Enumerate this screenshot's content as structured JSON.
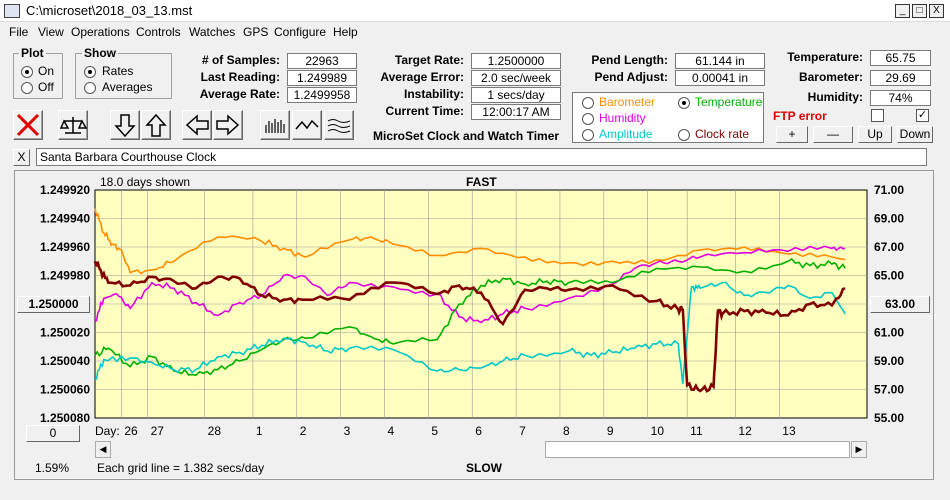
{
  "window": {
    "title": "C:\\microset\\2018_03_13.mst",
    "min": "_",
    "max": "□",
    "close": "X"
  },
  "menu": [
    "File",
    "View",
    "Operations",
    "Controls",
    "Watches",
    "GPS",
    "Configure",
    "Help"
  ],
  "plot_group": {
    "title": "Plot",
    "on": "On",
    "off": "Off",
    "selected": "On"
  },
  "show_group": {
    "title": "Show",
    "rates": "Rates",
    "averages": "Averages",
    "selected": "Rates"
  },
  "stats": {
    "samples_label": "# of Samples:",
    "samples": "22963",
    "last_label": "Last Reading:",
    "last": "1.249989",
    "avg_label": "Average Rate:",
    "avg": "1.2499958",
    "target_label": "Target Rate:",
    "target": "1.2500000",
    "avgerr_label": "Average Error:",
    "avgerr": "2.0 sec/week",
    "instab_label": "Instability:",
    "instab": "1 secs/day",
    "time_label": "Current Time:",
    "time": "12:00:17 AM",
    "app_title": "MicroSet Clock and Watch Timer",
    "pend_len_label": "Pend Length:",
    "pend_len": "61.144 in",
    "pend_adj_label": "Pend Adjust:",
    "pend_adj": "0.00041 in",
    "temp_label": "Temperature:",
    "temp": "65.75",
    "baro_label": "Barometer:",
    "baro": "29.69",
    "hum_label": "Humidity:",
    "hum": "74%",
    "ftp_label": "FTP error"
  },
  "aux": {
    "barometer": "Barometer",
    "temperature": "Temperature",
    "humidity": "Humidity",
    "amplitude": "Amplitude",
    "clockrate": "Clock rate",
    "selected": "Temperature",
    "colors": {
      "barometer": "#ff8c00",
      "temperature": "#00b000",
      "humidity": "#e000e0",
      "amplitude": "#00c8c8",
      "clockrate": "#800000"
    }
  },
  "buttons": {
    "plus": "+",
    "minus": "—",
    "up": "Up",
    "down": "Down",
    "close_x": "X",
    "zero": "0",
    "left_val": "1.250000",
    "right_val": "63.00"
  },
  "clock_name": "Santa Barbara Courthouse Clock",
  "chart_data": {
    "type": "line",
    "days_shown": "18.0 days shown",
    "top_label": "FAST",
    "bottom_label": "SLOW",
    "grid_note": "Each grid line = 1.382 secs/day",
    "percent": "1.59%",
    "day_label": "Day:",
    "left_ticks": [
      "1.249920",
      "1.249940",
      "1.249960",
      "1.249980",
      "1.250000",
      "1.250020",
      "1.250040",
      "1.250060",
      "1.250080"
    ],
    "right_ticks": [
      "71.00",
      "69.00",
      "67.00",
      "65.00",
      "63.00",
      "61.00",
      "59.00",
      "57.00",
      "55.00"
    ],
    "day_ticks": [
      "26",
      "27",
      "28",
      "1",
      "2",
      "3",
      "4",
      "5",
      "6",
      "7",
      "8",
      "9",
      "10",
      "11",
      "12",
      "13"
    ],
    "day_positions": [
      -0.2,
      0.4,
      1.7,
      2.8,
      3.8,
      4.8,
      5.8,
      6.8,
      7.8,
      8.8,
      9.8,
      10.8,
      11.8,
      12.7,
      13.8,
      14.8
    ],
    "x_range": [
      -0.8,
      16.8
    ],
    "series": [
      {
        "name": "Barometer",
        "color": "#ff8c00",
        "x": [
          -0.8,
          -0.6,
          -0.4,
          -0.2,
          0.0,
          0.5,
          1.0,
          2.0,
          3.0,
          3.5,
          4.0,
          5.0,
          5.5,
          6.0,
          7.0,
          8.0,
          9.0,
          10.0,
          11.0,
          12.0,
          13.0,
          14.0,
          15.0,
          16.0,
          16.3
        ],
        "y": [
          69.7,
          68.0,
          67.2,
          66.8,
          65.2,
          65.4,
          66.0,
          67.7,
          67.4,
          66.9,
          66.3,
          67.5,
          67.7,
          67.2,
          66.4,
          66.9,
          66.3,
          65.9,
          66.0,
          66.1,
          66.8,
          67.0,
          66.5,
          66.3,
          66.1
        ]
      },
      {
        "name": "Humidity",
        "color": "#e000e0",
        "x": [
          -0.8,
          -0.6,
          -0.3,
          0.0,
          0.5,
          1.0,
          1.5,
          2.0,
          2.5,
          3.0,
          3.5,
          4.0,
          4.5,
          5.0,
          6.0,
          7.0,
          7.5,
          8.0,
          8.5,
          9.0,
          10.0,
          11.0,
          11.5,
          12.0,
          12.5,
          13.0,
          14.0,
          15.0,
          16.0,
          16.3
        ],
        "y": [
          61.8,
          63.4,
          63.7,
          62.7,
          64.5,
          64.1,
          63.1,
          62.2,
          63.1,
          63.6,
          65.0,
          64.9,
          63.6,
          64.5,
          64.2,
          63.7,
          62.1,
          61.7,
          62.3,
          62.7,
          63.4,
          64.4,
          65.5,
          65.9,
          66.0,
          66.3,
          66.6,
          66.7,
          66.9,
          66.9
        ]
      },
      {
        "name": "Temperature",
        "color": "#00b000",
        "x": [
          -0.8,
          -0.5,
          0.0,
          0.5,
          1.0,
          1.5,
          2.0,
          2.5,
          3.0,
          3.5,
          4.0,
          5.0,
          5.5,
          6.0,
          7.0,
          7.5,
          8.0,
          8.5,
          9.0,
          9.5,
          10.0,
          11.0,
          12.0,
          13.0,
          14.0,
          15.0,
          15.5,
          16.0,
          16.3
        ],
        "y": [
          59.4,
          59.9,
          58.6,
          59.3,
          58.3,
          58.0,
          58.4,
          59.0,
          59.8,
          60.5,
          60.6,
          61.4,
          60.7,
          60.2,
          60.5,
          63.0,
          64.3,
          64.8,
          64.4,
          64.6,
          64.5,
          64.5,
          65.5,
          65.6,
          65.3,
          66.0,
          65.7,
          65.8,
          65.5
        ]
      },
      {
        "name": "Amplitude",
        "color": "#00c8c8",
        "x": [
          -0.8,
          -0.6,
          0.0,
          0.5,
          1.0,
          1.5,
          2.0,
          2.5,
          3.0,
          3.5,
          4.0,
          4.5,
          5.0,
          6.0,
          7.0,
          7.5,
          8.0,
          8.5,
          9.0,
          10.0,
          10.5,
          11.0,
          11.5,
          12.0,
          12.5,
          12.6,
          12.8,
          13.0,
          13.5,
          14.0,
          14.5,
          15.0,
          15.5,
          16.0,
          16.3
        ],
        "y": [
          57.7,
          59.1,
          59.2,
          58.9,
          58.4,
          58.4,
          59.3,
          59.6,
          60.1,
          60.6,
          60.3,
          59.7,
          59.9,
          59.8,
          58.3,
          58.4,
          58.5,
          59.0,
          59.4,
          59.7,
          59.4,
          59.6,
          59.9,
          60.2,
          60.2,
          57.4,
          64.2,
          64.1,
          64.5,
          63.6,
          63.8,
          64.3,
          63.4,
          63.8,
          62.3
        ]
      },
      {
        "name": "Clock rate",
        "color": "#800000",
        "x": [
          -0.8,
          -0.7,
          -0.5,
          0.0,
          0.5,
          1.0,
          1.5,
          2.0,
          2.5,
          3.0,
          3.5,
          4.0,
          5.0,
          6.0,
          7.0,
          7.5,
          8.0,
          8.5,
          9.0,
          9.5,
          10.0,
          11.0,
          12.0,
          12.5,
          12.6,
          12.7,
          13.0,
          13.3,
          13.4,
          13.5,
          14.0,
          14.5,
          15.0,
          15.5,
          16.0,
          16.3
        ],
        "y": [
          66.0,
          65.5,
          64.5,
          64.3,
          64.9,
          64.6,
          64.1,
          64.9,
          64.8,
          63.6,
          63.3,
          63.3,
          63.3,
          64.5,
          63.7,
          64.3,
          63.8,
          61.6,
          64.0,
          64.1,
          64.0,
          64.3,
          63.2,
          62.6,
          62.6,
          57.3,
          56.9,
          57.2,
          62.5,
          62.3,
          62.5,
          62.4,
          62.2,
          63.0,
          62.9,
          64.1
        ]
      }
    ]
  }
}
